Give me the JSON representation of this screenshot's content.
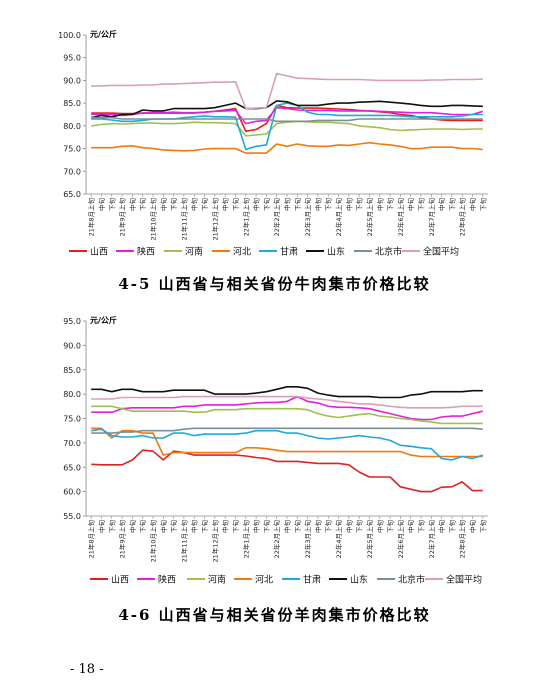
{
  "chart_data": [
    {
      "type": "line",
      "ylabel": "元/公斤",
      "ylim": [
        65.0,
        100.0
      ],
      "ytick_step": 5,
      "yticks": [
        "65.0",
        "70.0",
        "75.0",
        "80.0",
        "85.0",
        "90.0",
        "95.0",
        "100.0"
      ],
      "categories": [
        "21年8月上旬",
        "21年8月中旬",
        "21年8月下旬",
        "21年9月上旬",
        "21年9月中旬",
        "21年9月下旬",
        "21年10月上旬",
        "21年10月中旬",
        "21年10月下旬",
        "21年11月上旬",
        "21年11月中旬",
        "21年11月下旬",
        "21年12月上旬",
        "21年12月中旬",
        "21年12月下旬",
        "22年1月上旬",
        "22年1月中旬",
        "22年1月下旬",
        "22年2月上旬",
        "22年2月中旬",
        "22年2月下旬",
        "22年3月上旬",
        "22年3月中旬",
        "22年3月下旬",
        "22年4月上旬",
        "22年4月中旬",
        "22年4月下旬",
        "22年5月上旬",
        "22年5月中旬",
        "22年5月下旬",
        "22年6月上旬",
        "22年6月中旬",
        "22年6月下旬",
        "22年7月上旬",
        "22年7月中旬",
        "22年7月下旬",
        "22年8月上旬",
        "22年8月中旬",
        "22年8月下旬"
      ],
      "tick_labels": [
        "21年8月上旬",
        "中旬",
        "下旬",
        "21年9月上旬",
        "中旬",
        "下旬",
        "21年10月上旬",
        "中旬",
        "下旬",
        "21年11月上旬",
        "中旬",
        "下旬",
        "21年12月上旬",
        "中旬",
        "下旬",
        "22年1月上旬",
        "中旬",
        "下旬",
        "22年2月上旬",
        "中旬",
        "下旬",
        "22年3月上旬",
        "中旬",
        "下旬",
        "22年4月上旬",
        "中旬",
        "下旬",
        "22年5月上旬",
        "中旬",
        "下旬",
        "22年6月上旬",
        "中旬",
        "下旬",
        "22年7月上旬",
        "中旬",
        "下旬",
        "22年8月上旬",
        "中旬",
        "下旬"
      ],
      "legend_position": "bottom",
      "series": [
        {
          "name": "山西",
          "color": "#e02020",
          "values": [
            82.8,
            82.8,
            82.8,
            82.7,
            82.7,
            82.8,
            82.8,
            82.8,
            82.8,
            82.8,
            82.8,
            83.0,
            83.2,
            83.5,
            83.8,
            78.8,
            79.2,
            80.5,
            84.5,
            84.0,
            83.9,
            83.9,
            83.9,
            83.8,
            83.7,
            83.6,
            83.4,
            83.3,
            83.1,
            82.9,
            82.5,
            82.3,
            81.8,
            81.5,
            81.3,
            81.2,
            81.2,
            81.2,
            81.2
          ]
        },
        {
          "name": "陕西",
          "color": "#e020e0",
          "values": [
            82.5,
            82.5,
            82.5,
            82.3,
            82.5,
            82.8,
            82.9,
            82.9,
            83.0,
            82.9,
            82.9,
            83.0,
            83.2,
            83.3,
            83.4,
            80.5,
            81.0,
            81.2,
            84.0,
            83.8,
            83.5,
            83.4,
            83.4,
            83.4,
            83.3,
            83.3,
            83.3,
            83.3,
            83.2,
            83.1,
            83.0,
            82.9,
            82.9,
            82.9,
            82.7,
            82.5,
            82.5,
            82.5,
            83.2
          ]
        },
        {
          "name": "河南",
          "color": "#a0c050",
          "values": [
            80.0,
            80.3,
            80.5,
            80.4,
            80.5,
            80.6,
            80.6,
            80.5,
            80.5,
            80.6,
            80.8,
            80.7,
            80.7,
            80.6,
            80.5,
            77.8,
            78.0,
            78.2,
            80.5,
            80.8,
            81.0,
            80.9,
            80.8,
            80.8,
            80.6,
            80.5,
            80.0,
            79.8,
            79.6,
            79.2,
            79.0,
            79.1,
            79.2,
            79.3,
            79.3,
            79.3,
            79.2,
            79.3,
            79.3
          ]
        },
        {
          "name": "河北",
          "color": "#f07a10",
          "values": [
            75.2,
            75.2,
            75.2,
            75.5,
            75.6,
            75.2,
            75.0,
            74.7,
            74.6,
            74.5,
            74.6,
            74.9,
            75.0,
            75.0,
            75.0,
            74.0,
            74.0,
            74.0,
            76.0,
            75.5,
            76.0,
            75.6,
            75.5,
            75.5,
            75.8,
            75.7,
            76.0,
            76.3,
            76.0,
            75.8,
            75.5,
            75.0,
            75.0,
            75.3,
            75.3,
            75.3,
            75.0,
            75.0,
            74.8
          ]
        },
        {
          "name": "甘肃",
          "color": "#20a8d8",
          "values": [
            81.5,
            81.5,
            81.3,
            81.0,
            81.0,
            81.2,
            81.5,
            81.5,
            81.5,
            81.8,
            82.0,
            82.2,
            82.0,
            82.0,
            81.9,
            74.8,
            75.5,
            75.8,
            84.5,
            85.0,
            84.5,
            83.0,
            82.5,
            82.5,
            82.3,
            82.3,
            82.3,
            82.3,
            82.3,
            82.3,
            82.2,
            82.0,
            82.0,
            82.0,
            82.0,
            82.0,
            82.2,
            82.5,
            82.5
          ]
        },
        {
          "name": "山东",
          "color": "#101010",
          "values": [
            81.8,
            82.3,
            82.0,
            82.5,
            82.5,
            83.5,
            83.3,
            83.3,
            83.8,
            83.8,
            83.8,
            83.8,
            84.0,
            84.5,
            85.0,
            83.8,
            83.8,
            84.0,
            85.5,
            85.3,
            84.5,
            84.5,
            84.5,
            84.8,
            85.0,
            85.0,
            85.2,
            85.3,
            85.4,
            85.2,
            85.0,
            84.8,
            84.5,
            84.3,
            84.3,
            84.5,
            84.5,
            84.4,
            84.3
          ]
        },
        {
          "name": "北京市",
          "color": "#7a9098",
          "values": [
            81.8,
            81.8,
            81.8,
            81.5,
            81.5,
            81.5,
            81.5,
            81.5,
            81.5,
            81.5,
            81.5,
            81.5,
            81.5,
            81.5,
            81.5,
            81.5,
            81.5,
            81.5,
            81.0,
            81.0,
            81.0,
            81.0,
            81.2,
            81.2,
            81.2,
            81.2,
            81.5,
            81.5,
            81.5,
            81.5,
            81.5,
            81.5,
            81.5,
            81.5,
            81.5,
            81.5,
            81.5,
            81.5,
            81.5
          ]
        },
        {
          "name": "全国平均",
          "color": "#d8a0b0",
          "values": [
            88.8,
            88.8,
            88.9,
            88.9,
            88.9,
            89.0,
            89.0,
            89.2,
            89.2,
            89.3,
            89.4,
            89.5,
            89.6,
            89.6,
            89.7,
            83.8,
            83.9,
            84.0,
            91.5,
            91.0,
            90.5,
            90.4,
            90.3,
            90.2,
            90.2,
            90.2,
            90.2,
            90.1,
            90.0,
            90.0,
            90.0,
            90.0,
            90.0,
            90.1,
            90.1,
            90.2,
            90.2,
            90.2,
            90.3
          ]
        }
      ]
    },
    {
      "type": "line",
      "ylabel": "元/公斤",
      "ylim": [
        55.0,
        95.0
      ],
      "ytick_step": 5,
      "yticks": [
        "55.0",
        "60.0",
        "65.0",
        "70.0",
        "75.0",
        "80.0",
        "85.0",
        "90.0",
        "95.0"
      ],
      "categories": [
        "21年8月上旬",
        "21年8月中旬",
        "21年8月下旬",
        "21年9月上旬",
        "21年9月中旬",
        "21年9月下旬",
        "21年10月上旬",
        "21年10月中旬",
        "21年10月下旬",
        "21年11月上旬",
        "21年11月中旬",
        "21年11月下旬",
        "21年12月上旬",
        "21年12月中旬",
        "21年12月下旬",
        "22年1月上旬",
        "22年1月中旬",
        "22年1月下旬",
        "22年2月上旬",
        "22年2月中旬",
        "22年2月下旬",
        "22年3月上旬",
        "22年3月中旬",
        "22年3月下旬",
        "22年4月上旬",
        "22年4月中旬",
        "22年4月下旬",
        "22年5月上旬",
        "22年5月中旬",
        "22年5月下旬",
        "22年6月上旬",
        "22年6月中旬",
        "22年6月下旬",
        "22年7月上旬",
        "22年7月中旬",
        "22年7月下旬",
        "22年8月上旬",
        "22年8月中旬",
        "22年8月下旬"
      ],
      "tick_labels": [
        "21年8月上旬",
        "中旬",
        "下旬",
        "21年9月上旬",
        "中旬",
        "下旬",
        "21年10月上旬",
        "中旬",
        "下旬",
        "21年11月上旬",
        "中旬",
        "下旬",
        "21年12月上旬",
        "中旬",
        "下旬",
        "22年1月上旬",
        "中旬",
        "下旬",
        "22年2月上旬",
        "中旬",
        "下旬",
        "22年3月上旬",
        "中旬",
        "下旬",
        "22年4月上旬",
        "中旬",
        "下旬",
        "22年5月上旬",
        "中旬",
        "下旬",
        "22年6月上旬",
        "中旬",
        "下旬",
        "22年7月上旬",
        "中旬",
        "下旬",
        "22年8月上旬",
        "中旬",
        "下旬"
      ],
      "legend_position": "bottom",
      "series": [
        {
          "name": "山西",
          "color": "#e02020",
          "values": [
            65.6,
            65.5,
            65.5,
            65.5,
            66.5,
            68.5,
            68.3,
            66.5,
            68.3,
            68.0,
            67.5,
            67.5,
            67.5,
            67.5,
            67.5,
            67.3,
            67.0,
            66.8,
            66.2,
            66.2,
            66.2,
            66.0,
            65.8,
            65.8,
            65.8,
            65.5,
            64.0,
            63.0,
            63.0,
            63.0,
            61.0,
            60.5,
            60.0,
            60.0,
            60.9,
            61.0,
            62.0,
            60.2,
            60.2
          ]
        },
        {
          "name": "陕西",
          "color": "#e020e0",
          "values": [
            76.3,
            76.3,
            76.3,
            77.0,
            77.2,
            77.2,
            77.2,
            77.2,
            77.2,
            77.5,
            77.5,
            77.8,
            77.8,
            77.8,
            77.8,
            78.0,
            78.2,
            78.3,
            78.3,
            78.5,
            79.5,
            78.5,
            78.2,
            77.5,
            77.3,
            77.3,
            77.2,
            77.0,
            76.5,
            76.0,
            75.5,
            75.0,
            74.8,
            74.8,
            75.3,
            75.5,
            75.5,
            76.0,
            76.5
          ]
        },
        {
          "name": "河南",
          "color": "#a0c050",
          "values": [
            77.5,
            77.5,
            77.5,
            77.0,
            76.5,
            76.5,
            76.5,
            76.5,
            76.5,
            76.5,
            76.3,
            76.3,
            76.8,
            76.8,
            76.8,
            77.0,
            77.0,
            77.0,
            77.0,
            77.0,
            77.0,
            76.8,
            76.0,
            75.5,
            75.2,
            75.5,
            75.8,
            76.0,
            75.5,
            75.3,
            75.0,
            74.8,
            74.5,
            74.3,
            74.0,
            74.0,
            74.0,
            74.0,
            74.0
          ]
        },
        {
          "name": "河北",
          "color": "#f07a10",
          "values": [
            73.0,
            73.0,
            71.0,
            72.5,
            72.5,
            72.0,
            72.0,
            67.5,
            68.0,
            68.0,
            68.0,
            68.0,
            68.0,
            68.0,
            68.0,
            69.0,
            69.0,
            68.8,
            68.5,
            68.2,
            68.2,
            68.2,
            68.2,
            68.2,
            68.2,
            68.2,
            68.2,
            68.2,
            68.2,
            68.2,
            68.2,
            67.5,
            67.2,
            67.2,
            67.2,
            67.2,
            67.2,
            67.2,
            67.2
          ]
        },
        {
          "name": "甘肃",
          "color": "#20a8d8",
          "values": [
            72.5,
            72.8,
            71.5,
            71.2,
            71.2,
            71.5,
            71.0,
            71.0,
            72.0,
            72.0,
            71.5,
            71.8,
            71.8,
            71.8,
            71.8,
            72.0,
            72.5,
            72.5,
            72.5,
            72.0,
            72.0,
            71.5,
            71.0,
            70.8,
            71.0,
            71.2,
            71.5,
            71.2,
            71.0,
            70.5,
            69.5,
            69.3,
            69.0,
            68.8,
            66.8,
            66.5,
            67.2,
            66.8,
            67.5
          ]
        },
        {
          "name": "山东",
          "color": "#101010",
          "values": [
            81.0,
            81.0,
            80.5,
            81.0,
            81.0,
            80.5,
            80.5,
            80.5,
            80.8,
            80.8,
            80.8,
            80.8,
            80.0,
            80.0,
            80.0,
            80.0,
            80.2,
            80.5,
            81.0,
            81.5,
            81.5,
            81.2,
            80.2,
            79.8,
            79.5,
            79.5,
            79.5,
            79.5,
            79.3,
            79.3,
            79.3,
            79.8,
            80.0,
            80.5,
            80.5,
            80.5,
            80.5,
            80.7,
            80.7
          ]
        },
        {
          "name": "北京市",
          "color": "#7a9098",
          "values": [
            72.0,
            72.0,
            72.0,
            72.2,
            72.2,
            72.5,
            72.5,
            72.5,
            72.5,
            72.8,
            73.0,
            73.0,
            73.0,
            73.0,
            73.0,
            73.0,
            73.0,
            73.0,
            73.0,
            73.0,
            73.0,
            73.0,
            73.0,
            73.0,
            73.0,
            73.0,
            73.0,
            73.0,
            73.0,
            73.0,
            73.0,
            73.0,
            73.0,
            73.0,
            73.0,
            73.0,
            73.0,
            73.0,
            72.8
          ]
        },
        {
          "name": "全国平均",
          "color": "#d8a0b0",
          "values": [
            79.0,
            79.0,
            79.0,
            79.3,
            79.3,
            79.3,
            79.3,
            79.3,
            79.3,
            79.5,
            79.5,
            79.5,
            79.5,
            79.5,
            79.5,
            79.5,
            79.5,
            79.5,
            79.5,
            79.5,
            79.5,
            79.2,
            79.0,
            78.8,
            78.5,
            78.3,
            78.0,
            78.0,
            77.8,
            77.5,
            77.3,
            77.2,
            77.2,
            77.2,
            77.2,
            77.3,
            77.5,
            77.5,
            77.5
          ]
        }
      ]
    }
  ],
  "captions": [
    "4-5 山西省与相关省份牛肉集市价格比较",
    "4-6 山西省与相关省份羊肉集市价格比较"
  ],
  "page_number": "- 18 -"
}
